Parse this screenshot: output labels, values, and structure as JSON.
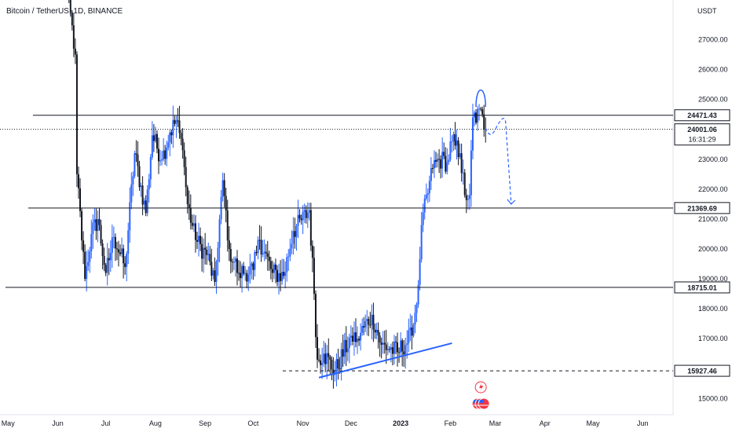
{
  "header": {
    "symbol": "Bitcoin / TetherUS, 1D, BINANCE",
    "currency": "USDT"
  },
  "chart_data": {
    "type": "candlestick",
    "y_axis": {
      "range": [
        14800,
        27800
      ],
      "ticks": [
        "27000.00",
        "26000.00",
        "25000.00",
        "23000.00",
        "22000.00",
        "21000.00",
        "20000.00",
        "19000.00",
        "18000.00",
        "17000.00",
        "15000.00"
      ],
      "tick_values": [
        27000,
        26000,
        25000,
        23000,
        22000,
        21000,
        20000,
        19000,
        18000,
        17000,
        15000
      ]
    },
    "x_axis": {
      "range": [
        "2022-04-26",
        "2023-06-20"
      ],
      "labels": [
        {
          "text": "May",
          "date": "2022-05-01"
        },
        {
          "text": "Jun",
          "date": "2022-06-01"
        },
        {
          "text": "Jul",
          "date": "2022-07-01"
        },
        {
          "text": "Aug",
          "date": "2022-08-01"
        },
        {
          "text": "Sep",
          "date": "2022-09-01"
        },
        {
          "text": "Oct",
          "date": "2022-10-01"
        },
        {
          "text": "Nov",
          "date": "2022-11-01"
        },
        {
          "text": "Dec",
          "date": "2022-12-01"
        },
        {
          "text": "2023",
          "date": "2023-01-01"
        },
        {
          "text": "Feb",
          "date": "2023-02-01"
        },
        {
          "text": "Mar",
          "date": "2023-03-01"
        },
        {
          "text": "Apr",
          "date": "2023-04-01"
        },
        {
          "text": "May",
          "date": "2023-05-01"
        },
        {
          "text": "Jun",
          "date": "2023-06-01"
        }
      ]
    },
    "price_levels": [
      {
        "value": 24471.43,
        "label": "24471.43",
        "style": "solid"
      },
      {
        "value": 21369.69,
        "label": "21369.69",
        "style": "solid"
      },
      {
        "value": 18715.01,
        "label": "18715.01",
        "style": "solid"
      },
      {
        "value": 15927.46,
        "label": "15927.46",
        "style": "dashed"
      }
    ],
    "last_price": {
      "value": 24001.06,
      "label": "24001.06",
      "countdown": "16:31:29"
    },
    "price_series": [
      [
        "2022-06-05",
        29500
      ],
      [
        "2022-06-12",
        26500
      ],
      [
        "2022-06-13",
        22500
      ],
      [
        "2022-06-18",
        19000
      ],
      [
        "2022-06-22",
        20500
      ],
      [
        "2022-06-26",
        21000
      ],
      [
        "2022-07-01",
        19200
      ],
      [
        "2022-07-06",
        20400
      ],
      [
        "2022-07-13",
        19400
      ],
      [
        "2022-07-19",
        23200
      ],
      [
        "2022-07-26",
        21200
      ],
      [
        "2022-07-30",
        23800
      ],
      [
        "2022-08-05",
        23000
      ],
      [
        "2022-08-10",
        23900
      ],
      [
        "2022-08-14",
        24300
      ],
      [
        "2022-08-18",
        23300
      ],
      [
        "2022-08-21",
        21500
      ],
      [
        "2022-08-26",
        20300
      ],
      [
        "2022-09-02",
        19800
      ],
      [
        "2022-09-07",
        18900
      ],
      [
        "2022-09-12",
        22300
      ],
      [
        "2022-09-16",
        20000
      ],
      [
        "2022-09-22",
        19200
      ],
      [
        "2022-10-01",
        19300
      ],
      [
        "2022-10-05",
        20300
      ],
      [
        "2022-10-13",
        19200
      ],
      [
        "2022-10-20",
        19100
      ],
      [
        "2022-10-26",
        20600
      ],
      [
        "2022-11-05",
        21300
      ],
      [
        "2022-11-08",
        18500
      ],
      [
        "2022-11-10",
        16300
      ],
      [
        "2022-11-14",
        16500
      ],
      [
        "2022-11-21",
        15900
      ],
      [
        "2022-12-01",
        17100
      ],
      [
        "2022-12-05",
        17000
      ],
      [
        "2022-12-14",
        17800
      ],
      [
        "2022-12-20",
        16800
      ],
      [
        "2022-12-30",
        16550
      ],
      [
        "2023-01-08",
        17100
      ],
      [
        "2023-01-12",
        18800
      ],
      [
        "2023-01-14",
        20800
      ],
      [
        "2023-01-21",
        22700
      ],
      [
        "2023-01-25",
        23000
      ],
      [
        "2023-01-30",
        22900
      ],
      [
        "2023-02-02",
        23600
      ],
      [
        "2023-02-07",
        23200
      ],
      [
        "2023-02-10",
        21800
      ],
      [
        "2023-02-13",
        21800
      ],
      [
        "2023-02-15",
        24400
      ],
      [
        "2023-02-21",
        24500
      ],
      [
        "2023-02-23",
        24000
      ]
    ],
    "annotations": [
      {
        "type": "support-line",
        "from": [
          "2022-11-11",
          15700
        ],
        "to": [
          "2023-02-02",
          16850
        ]
      },
      {
        "type": "arc",
        "from": [
          "2023-02-17",
          24750
        ],
        "peak": [
          "2023-02-20",
          25400
        ],
        "to": [
          "2023-02-23",
          24750
        ]
      },
      {
        "type": "projection",
        "points": [
          [
            "2023-02-23",
            24050
          ],
          [
            "2023-02-26",
            23800
          ],
          [
            "2023-03-06",
            24400
          ],
          [
            "2023-03-11",
            21500
          ]
        ]
      }
    ],
    "colors": {
      "up": "#2962ff",
      "down": "#131722",
      "support": "#2962ff",
      "levels": "#131722"
    }
  }
}
